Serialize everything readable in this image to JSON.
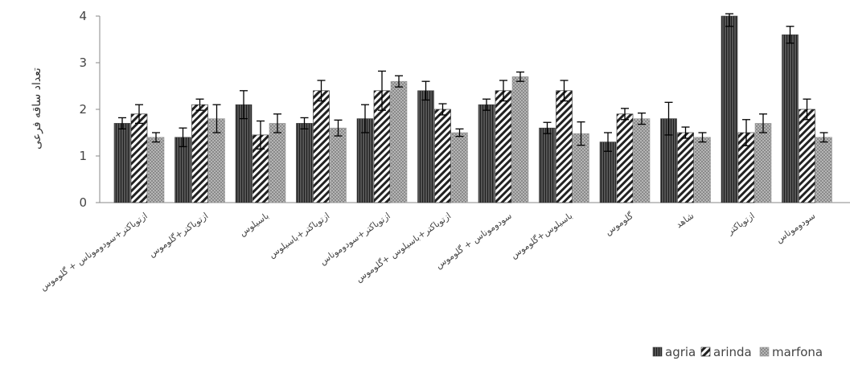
{
  "chart_data": {
    "type": "bar",
    "ylabel": "تعداد ساقه فرعی",
    "ylim": [
      0,
      4
    ],
    "yticks": [
      0,
      1,
      2,
      3,
      4
    ],
    "grid": false,
    "legend_position": "bottom-right",
    "categories": [
      "ازتوباکتر+سودوموناس + گلوموس",
      "ازتوباکتر+گلوموس",
      "باسیلوس",
      "ازتوباکتر+باسیلوس",
      "ازتوباکتر+سودوموناس",
      "ازتوباکتر+باسیلوس +گلوموس",
      "سودوموناس + گلوموس",
      "باسیلوس+گلوموس",
      "گلوموس",
      "شاهد",
      "ازتوباکتر",
      "سودوموناس"
    ],
    "series": [
      {
        "name": "agria",
        "color": "#3a3a3a",
        "pattern": "vertical-lines",
        "values": [
          1.7,
          1.4,
          2.1,
          1.7,
          1.8,
          2.4,
          2.1,
          1.6,
          1.3,
          1.8,
          4.0,
          3.6
        ],
        "errors": [
          0.12,
          0.2,
          0.3,
          0.12,
          0.3,
          0.2,
          0.12,
          0.12,
          0.2,
          0.35,
          0.22,
          0.18
        ]
      },
      {
        "name": "arinda",
        "color": "#222222",
        "pattern": "diagonal-stripes",
        "values": [
          1.9,
          2.1,
          1.45,
          2.4,
          2.4,
          2.0,
          2.4,
          2.4,
          1.9,
          1.5,
          1.5,
          2.0
        ],
        "errors": [
          0.2,
          0.12,
          0.3,
          0.22,
          0.42,
          0.12,
          0.22,
          0.22,
          0.12,
          0.12,
          0.28,
          0.22
        ]
      },
      {
        "name": "marfona",
        "color": "#9a9a9a",
        "pattern": "checker",
        "values": [
          1.4,
          1.8,
          1.7,
          1.6,
          2.6,
          1.5,
          2.7,
          1.48,
          1.8,
          1.4,
          1.7,
          1.4
        ],
        "errors": [
          0.1,
          0.3,
          0.2,
          0.17,
          0.12,
          0.08,
          0.1,
          0.25,
          0.12,
          0.1,
          0.2,
          0.1
        ]
      }
    ]
  }
}
